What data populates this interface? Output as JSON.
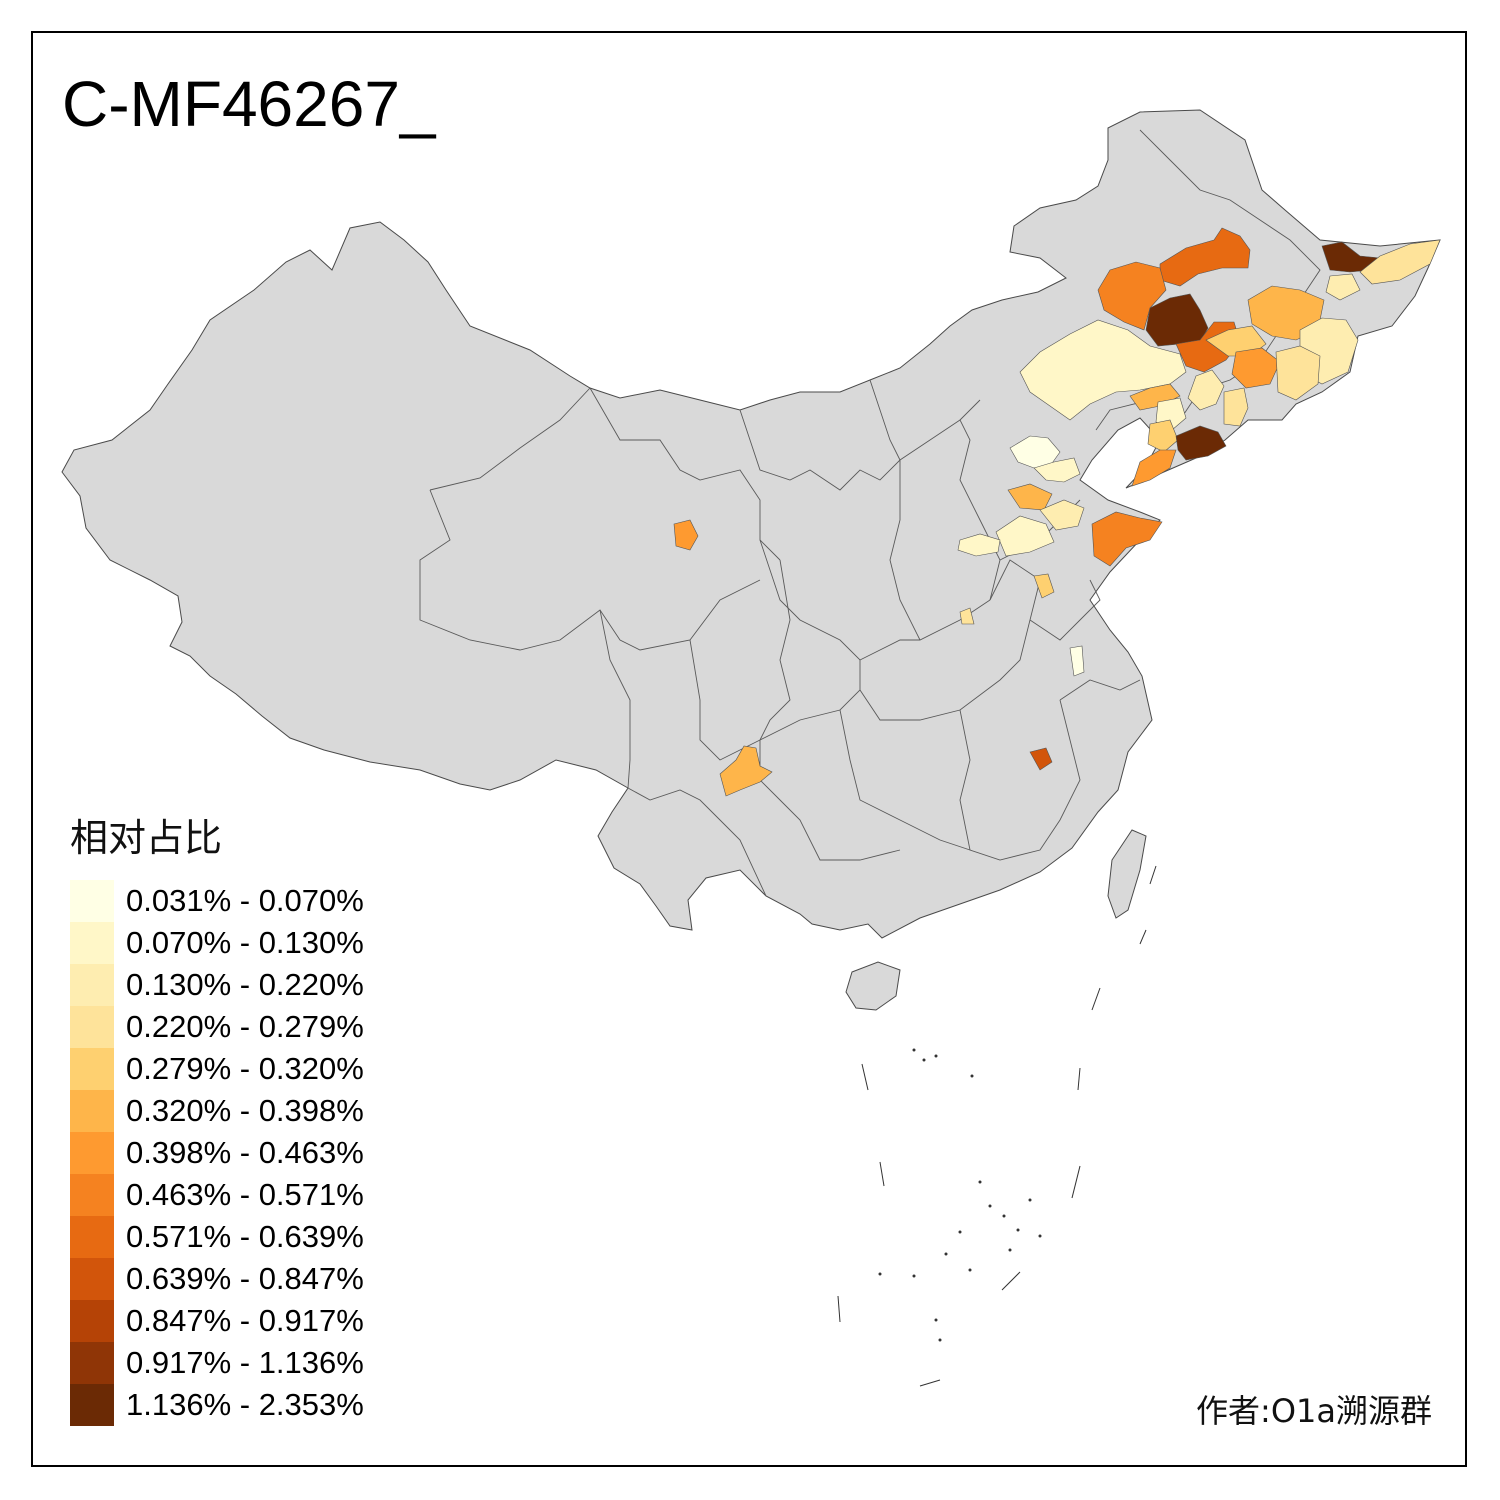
{
  "title": "C-MF46267_",
  "legend": {
    "title": "相对占比",
    "items": [
      {
        "label": "0.031% - 0.070%",
        "color": "#ffffe5"
      },
      {
        "label": "0.070% - 0.130%",
        "color": "#fff7c8"
      },
      {
        "label": "0.130% - 0.220%",
        "color": "#feedb0"
      },
      {
        "label": "0.220% - 0.279%",
        "color": "#fee39a"
      },
      {
        "label": "0.279% - 0.320%",
        "color": "#fed070"
      },
      {
        "label": "0.320% - 0.398%",
        "color": "#feb54a"
      },
      {
        "label": "0.398% - 0.463%",
        "color": "#fe9a30"
      },
      {
        "label": "0.463% - 0.571%",
        "color": "#f58220"
      },
      {
        "label": "0.571% - 0.639%",
        "color": "#e76a12"
      },
      {
        "label": "0.639% - 0.847%",
        "color": "#d2550b"
      },
      {
        "label": "0.847% - 0.917%",
        "color": "#b54306"
      },
      {
        "label": "0.917% - 1.136%",
        "color": "#8f3506"
      },
      {
        "label": "1.136% - 2.353%",
        "color": "#6b2a05"
      }
    ]
  },
  "author": "作者:O1a溯源群",
  "colors": {
    "land": "#d9d9d9",
    "border": "#4a4a4a",
    "frame": "#000000"
  }
}
